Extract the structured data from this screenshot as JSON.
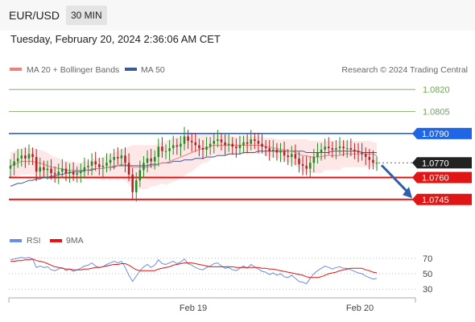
{
  "header": {
    "symbol": "EUR/USD",
    "timeframe": "30 MIN",
    "datetime": "Tuesday, February 20, 2024 2:36:06 AM CET"
  },
  "legend": {
    "ma20": "MA 20 + Bollinger Bands",
    "ma50": "MA 50",
    "credit": "Research © 2024 Trading Central",
    "rsi": "RSI",
    "rsi_ma": "9MA"
  },
  "colors": {
    "bull": "#228B22",
    "bear": "#B22222",
    "ma20": "#f08080",
    "ma50": "#3d5a99",
    "band_fill": "#fde3e3",
    "resistance": "#1e66e6",
    "support": "#e01616",
    "target": "#6aa84f",
    "current": "#222222",
    "rsi_line": "#6a8ee0",
    "rsi_ma": "#e01616",
    "arrow": "#2f5fa8"
  },
  "chart_data": [
    {
      "type": "candlestick",
      "y_range": [
        1.0735,
        1.083
      ],
      "x_labels": [
        "Feb 19",
        "Feb 20"
      ],
      "last_price": 1.077,
      "levels": [
        {
          "value": 1.082,
          "label": "1.0820",
          "kind": "target"
        },
        {
          "value": 1.0805,
          "label": "1.0805",
          "kind": "target"
        },
        {
          "value": 1.079,
          "label": "1.0790",
          "kind": "resistance"
        },
        {
          "value": 1.077,
          "label": "1.0770",
          "kind": "current"
        },
        {
          "value": 1.076,
          "label": "1.0760",
          "kind": "support"
        },
        {
          "value": 1.0745,
          "label": "1.0745",
          "kind": "support"
        }
      ],
      "projection": {
        "direction": "down",
        "from": 1.077,
        "to": 1.0747
      },
      "closes": [
        1.0768,
        1.0771,
        1.0773,
        1.0775,
        1.0773,
        1.0776,
        1.0774,
        1.0764,
        1.0767,
        1.0765,
        1.0766,
        1.0763,
        1.0762,
        1.0764,
        1.0766,
        1.0763,
        1.0764,
        1.0762,
        1.0763,
        1.0764,
        1.0767,
        1.0768,
        1.0771,
        1.0769,
        1.0767,
        1.0768,
        1.077,
        1.0772,
        1.0774,
        1.0773,
        1.0775,
        1.077,
        1.0762,
        1.075,
        1.0758,
        1.0765,
        1.077,
        1.0773,
        1.0771,
        1.0774,
        1.0781,
        1.0778,
        1.0778,
        1.078,
        1.0782,
        1.0781,
        1.0783,
        1.0788,
        1.0785,
        1.0784,
        1.0782,
        1.078,
        1.0779,
        1.0781,
        1.0783,
        1.0785,
        1.0786,
        1.0784,
        1.0782,
        1.0783,
        1.0781,
        1.078,
        1.0782,
        1.0784,
        1.0783,
        1.0786,
        1.0785,
        1.0783,
        1.0781,
        1.078,
        1.0778,
        1.0779,
        1.0777,
        1.0778,
        1.0775,
        1.0774,
        1.0776,
        1.0773,
        1.0769,
        1.0768,
        1.0766,
        1.077,
        1.0774,
        1.0777,
        1.0779,
        1.0781,
        1.078,
        1.0779,
        1.078,
        1.0781,
        1.078,
        1.078,
        1.0779,
        1.0778,
        1.0777,
        1.0776,
        1.0774,
        1.0772,
        1.077,
        1.077
      ],
      "ma20": [
        1.0768,
        1.0769,
        1.077,
        1.0771,
        1.0771,
        1.0771,
        1.0771,
        1.077,
        1.077,
        1.0769,
        1.0768,
        1.0767,
        1.0767,
        1.0766,
        1.0766,
        1.0765,
        1.0765,
        1.0765,
        1.0765,
        1.0765,
        1.0765,
        1.0765,
        1.0766,
        1.0766,
        1.0766,
        1.0766,
        1.0767,
        1.0767,
        1.0768,
        1.0768,
        1.0769,
        1.0769,
        1.0768,
        1.0767,
        1.0767,
        1.0767,
        1.0767,
        1.0767,
        1.0768,
        1.0768,
        1.0769,
        1.077,
        1.077,
        1.0771,
        1.0772,
        1.0773,
        1.0774,
        1.0775,
        1.0776,
        1.0777,
        1.0778,
        1.0779,
        1.078,
        1.078,
        1.0781,
        1.0782,
        1.0782,
        1.0782,
        1.0782,
        1.0782,
        1.0782,
        1.0782,
        1.0782,
        1.0782,
        1.0782,
        1.0782,
        1.0782,
        1.0782,
        1.0782,
        1.0781,
        1.0781,
        1.078,
        1.078,
        1.0779,
        1.0779,
        1.0778,
        1.0778,
        1.0777,
        1.0776,
        1.0775,
        1.0775,
        1.0774,
        1.0774,
        1.0774,
        1.0774,
        1.0775,
        1.0775,
        1.0775,
        1.0775,
        1.0775,
        1.0776,
        1.0776,
        1.0776,
        1.0776,
        1.0776,
        1.0776,
        1.0776,
        1.0776,
        1.0776,
        1.0775
      ],
      "ma50": [
        1.0754,
        1.0755,
        1.0756,
        1.0756,
        1.0757,
        1.0758,
        1.0758,
        1.0759,
        1.0759,
        1.076,
        1.076,
        1.0761,
        1.0761,
        1.0762,
        1.0762,
        1.0763,
        1.0763,
        1.0764,
        1.0764,
        1.0764,
        1.0765,
        1.0765,
        1.0765,
        1.0766,
        1.0766,
        1.0766,
        1.0767,
        1.0767,
        1.0767,
        1.0768,
        1.0768,
        1.0768,
        1.0768,
        1.0768,
        1.0768,
        1.0768,
        1.0768,
        1.0768,
        1.0769,
        1.0769,
        1.0769,
        1.077,
        1.077,
        1.077,
        1.0771,
        1.0771,
        1.0771,
        1.0772,
        1.0772,
        1.0772,
        1.0773,
        1.0773,
        1.0773,
        1.0774,
        1.0774,
        1.0774,
        1.0775,
        1.0775,
        1.0775,
        1.0776,
        1.0776,
        1.0776,
        1.0776,
        1.0777,
        1.0777,
        1.0777,
        1.0777,
        1.0778,
        1.0778,
        1.0778,
        1.0778,
        1.0778,
        1.0778,
        1.0778,
        1.0778,
        1.0778,
        1.0778,
        1.0778,
        1.0778,
        1.0778,
        1.0777,
        1.0777,
        1.0777,
        1.0777,
        1.0777,
        1.0777,
        1.0777,
        1.0778,
        1.0778,
        1.0778,
        1.0778,
        1.0778,
        1.0778,
        1.0778,
        1.0778,
        1.0777,
        1.0777,
        1.0777,
        1.0777,
        1.0777
      ],
      "band_upper": [
        1.0777,
        1.0778,
        1.0779,
        1.078,
        1.078,
        1.078,
        1.078,
        1.0779,
        1.0779,
        1.0778,
        1.0777,
        1.0775,
        1.0774,
        1.0773,
        1.0772,
        1.0771,
        1.0771,
        1.077,
        1.077,
        1.077,
        1.0771,
        1.0771,
        1.0772,
        1.0773,
        1.0773,
        1.0774,
        1.0775,
        1.0776,
        1.0777,
        1.0778,
        1.0779,
        1.078,
        1.0781,
        1.0782,
        1.0782,
        1.0782,
        1.0782,
        1.0782,
        1.0782,
        1.0782,
        1.0783,
        1.0784,
        1.0785,
        1.0786,
        1.0787,
        1.0788,
        1.0788,
        1.0789,
        1.0789,
        1.079,
        1.079,
        1.079,
        1.079,
        1.079,
        1.079,
        1.0789,
        1.0789,
        1.0789,
        1.0789,
        1.0789,
        1.0788,
        1.0788,
        1.0788,
        1.0788,
        1.0788,
        1.0788,
        1.0788,
        1.0788,
        1.0788,
        1.0787,
        1.0787,
        1.0787,
        1.0786,
        1.0786,
        1.0786,
        1.0786,
        1.0786,
        1.0786,
        1.0786,
        1.0786,
        1.0786,
        1.0785,
        1.0785,
        1.0785,
        1.0785,
        1.0785,
        1.0785,
        1.0785,
        1.0785,
        1.0785,
        1.0785,
        1.0785,
        1.0785,
        1.0785,
        1.0785,
        1.0785,
        1.0785,
        1.0785,
        1.0784,
        1.0784
      ],
      "band_lower": [
        1.0759,
        1.076,
        1.0761,
        1.0762,
        1.0762,
        1.0762,
        1.0762,
        1.0761,
        1.0761,
        1.076,
        1.0759,
        1.0759,
        1.076,
        1.0759,
        1.076,
        1.0759,
        1.0759,
        1.076,
        1.076,
        1.076,
        1.0759,
        1.0759,
        1.076,
        1.0759,
        1.0759,
        1.0758,
        1.0759,
        1.0758,
        1.0759,
        1.0758,
        1.0759,
        1.0758,
        1.0755,
        1.0752,
        1.0752,
        1.0752,
        1.0752,
        1.0752,
        1.0754,
        1.0754,
        1.0755,
        1.0756,
        1.0755,
        1.0756,
        1.0757,
        1.0758,
        1.076,
        1.0761,
        1.0763,
        1.0764,
        1.0766,
        1.0768,
        1.077,
        1.077,
        1.0772,
        1.0775,
        1.0775,
        1.0775,
        1.0775,
        1.0775,
        1.0776,
        1.0776,
        1.0776,
        1.0776,
        1.0776,
        1.0776,
        1.0776,
        1.0776,
        1.0776,
        1.0775,
        1.0775,
        1.0773,
        1.0774,
        1.0772,
        1.0772,
        1.077,
        1.077,
        1.0768,
        1.0766,
        1.0764,
        1.0764,
        1.0763,
        1.0763,
        1.0763,
        1.0763,
        1.0765,
        1.0765,
        1.0765,
        1.0765,
        1.0765,
        1.0767,
        1.0767,
        1.0767,
        1.0767,
        1.0767,
        1.0767,
        1.0767,
        1.0767,
        1.0768,
        1.0766
      ]
    },
    {
      "type": "line",
      "name": "RSI",
      "y_range": [
        25,
        75
      ],
      "y_ticks": [
        70,
        50,
        30
      ],
      "rsi": [
        68,
        69,
        70,
        71,
        70,
        71,
        69,
        58,
        60,
        58,
        59,
        55,
        54,
        56,
        58,
        54,
        56,
        53,
        55,
        57,
        60,
        61,
        64,
        60,
        58,
        59,
        62,
        64,
        66,
        64,
        66,
        58,
        48,
        40,
        47,
        54,
        59,
        62,
        58,
        61,
        68,
        63,
        62,
        64,
        66,
        63,
        65,
        69,
        63,
        61,
        58,
        56,
        55,
        58,
        60,
        63,
        64,
        60,
        57,
        58,
        55,
        54,
        57,
        60,
        57,
        62,
        59,
        56,
        53,
        52,
        49,
        51,
        48,
        50,
        46,
        45,
        48,
        44,
        40,
        39,
        37,
        44,
        50,
        54,
        57,
        60,
        58,
        56,
        58,
        59,
        57,
        57,
        55,
        53,
        51,
        50,
        47,
        45,
        43,
        44
      ],
      "rsi_ma": [
        66,
        66,
        67,
        67,
        68,
        68,
        69,
        67,
        66,
        65,
        63,
        61,
        59,
        58,
        57,
        56,
        56,
        55,
        55,
        55,
        56,
        56,
        57,
        58,
        58,
        59,
        60,
        61,
        62,
        62,
        63,
        63,
        61,
        58,
        55,
        54,
        54,
        54,
        54,
        54,
        56,
        57,
        58,
        59,
        61,
        62,
        63,
        64,
        64,
        64,
        63,
        62,
        61,
        60,
        59,
        59,
        59,
        59,
        59,
        59,
        59,
        58,
        58,
        58,
        58,
        58,
        58,
        58,
        57,
        57,
        56,
        56,
        55,
        54,
        53,
        52,
        51,
        50,
        49,
        48,
        46,
        45,
        45,
        45,
        46,
        48,
        50,
        51,
        52,
        54,
        55,
        56,
        57,
        57,
        57,
        57,
        55,
        54,
        52,
        51
      ]
    }
  ]
}
